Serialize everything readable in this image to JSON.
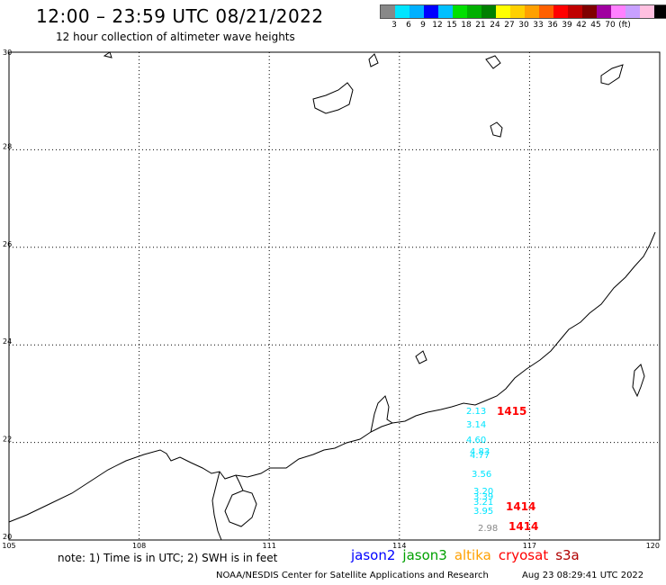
{
  "header": {
    "title": "12:00 – 23:59 UTC 08/21/2022",
    "subtitle": "12 hour collection of altimeter wave heights"
  },
  "colorbar": {
    "colors": [
      "#888888",
      "#00e5ff",
      "#00b0ff",
      "#0000ff",
      "#00c0ff",
      "#00e000",
      "#00b000",
      "#008000",
      "#ffff00",
      "#ffd000",
      "#ffa000",
      "#ff6000",
      "#ff0000",
      "#c00000",
      "#800000",
      "#a000a0",
      "#ff80ff",
      "#c8a0ff",
      "#ffc0e0",
      "#000000"
    ],
    "labels": [
      "3",
      "6",
      "9",
      "12",
      "15",
      "18",
      "21",
      "24",
      "27",
      "30",
      "33",
      "36",
      "39",
      "42",
      "45",
      "70",
      "(ft)"
    ]
  },
  "map": {
    "lat_labels": [
      "30",
      "28",
      "26",
      "24",
      "22",
      "20"
    ],
    "lon_labels": [
      "105",
      "108",
      "111",
      "114",
      "117",
      "120"
    ]
  },
  "observations": [
    {
      "text": "2.13",
      "color": "#00e5ff"
    },
    {
      "text": "3.14",
      "color": "#00e5ff"
    },
    {
      "text": "4.60",
      "color": "#00e5ff"
    },
    {
      "text": "4.83",
      "color": "#00e5ff"
    },
    {
      "text": "4.77",
      "color": "#00e5ff"
    },
    {
      "text": "3.56",
      "color": "#00e5ff"
    },
    {
      "text": "3.20",
      "color": "#00e5ff"
    },
    {
      "text": "3.39",
      "color": "#00e5ff"
    },
    {
      "text": "3.21",
      "color": "#00e5ff"
    },
    {
      "text": "3.95",
      "color": "#00e5ff"
    },
    {
      "text": "2.98",
      "color": "#888888"
    },
    {
      "text": "1415",
      "color": "#ff0000"
    },
    {
      "text": "1414",
      "color": "#ff0000"
    },
    {
      "text": "1414",
      "color": "#ff0000"
    }
  ],
  "footer": {
    "note": "note:  1) Time is in UTC;  2) SWH is in feet",
    "legend": [
      {
        "label": "jason2",
        "color": "#0000ff"
      },
      {
        "label": "jason3",
        "color": "#00a000"
      },
      {
        "label": "altika",
        "color": "#ffa000"
      },
      {
        "label": "cryosat",
        "color": "#ff0000"
      },
      {
        "label": "s3a",
        "color": "#b00000"
      }
    ],
    "credit": "NOAA/NESDIS Center for Satellite Applications and Research",
    "timestamp": "Aug 23 08:29:41 UTC 2022"
  }
}
